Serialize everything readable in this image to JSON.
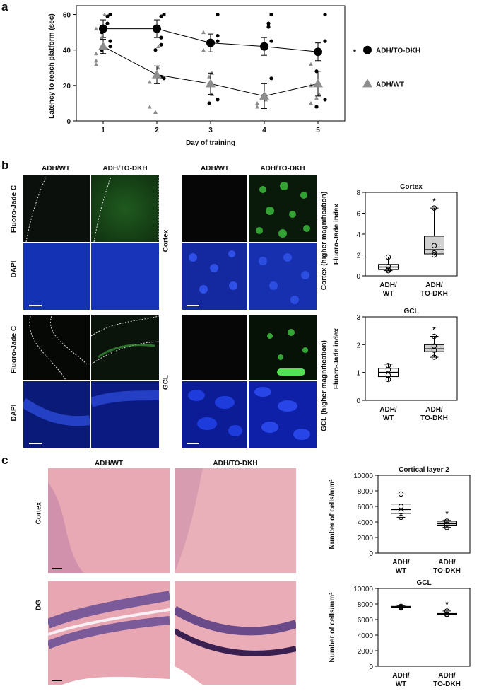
{
  "panels": {
    "a": "a",
    "b": "b",
    "c": "c"
  },
  "panel_a": {
    "chart_data": {
      "type": "scatter",
      "xlabel": "Day of training",
      "ylabel": "Latency to reach platform (sec)",
      "x": [
        1,
        2,
        3,
        4,
        5
      ],
      "xlim": [
        0.5,
        5.5
      ],
      "ylim": [
        0,
        65
      ],
      "yticks": [
        0,
        20,
        40,
        60
      ],
      "significance": "*",
      "series": [
        {
          "name": "ADH/TO-DKH",
          "mean": [
            52,
            52,
            44,
            42,
            39
          ],
          "error": [
            5,
            5,
            5,
            5,
            5
          ],
          "color": "#000000",
          "marker": "circle",
          "points": [
            [
              1,
              60
            ],
            [
              1,
              59
            ],
            [
              1,
              55
            ],
            [
              1,
              52
            ],
            [
              1,
              50
            ],
            [
              1,
              45
            ],
            [
              1,
              42
            ],
            [
              1,
              40
            ],
            [
              2,
              60
            ],
            [
              2,
              59
            ],
            [
              2,
              52
            ],
            [
              2,
              47
            ],
            [
              2,
              43
            ],
            [
              2,
              40
            ],
            [
              2,
              25
            ],
            [
              2,
              24
            ],
            [
              3,
              60
            ],
            [
              3,
              48
            ],
            [
              3,
              45
            ],
            [
              3,
              20
            ],
            [
              3,
              12
            ],
            [
              3,
              10
            ],
            [
              4,
              60
            ],
            [
              4,
              55
            ],
            [
              4,
              53
            ],
            [
              4,
              45
            ],
            [
              4,
              24
            ],
            [
              4,
              14
            ],
            [
              5,
              60
            ],
            [
              5,
              45
            ],
            [
              5,
              40
            ],
            [
              5,
              28
            ],
            [
              5,
              12
            ],
            [
              5,
              8
            ]
          ]
        },
        {
          "name": "ADH/WT",
          "mean": [
            42,
            26,
            21,
            14,
            21
          ],
          "error": [
            4,
            5,
            6,
            7,
            7
          ],
          "color": "#8c8c8c",
          "marker": "triangle",
          "points": [
            [
              1,
              60
            ],
            [
              1,
              52
            ],
            [
              1,
              47
            ],
            [
              1,
              42
            ],
            [
              1,
              38
            ],
            [
              1,
              34
            ],
            [
              1,
              32
            ],
            [
              2,
              42
            ],
            [
              2,
              30
            ],
            [
              2,
              22
            ],
            [
              2,
              8
            ],
            [
              2,
              5
            ],
            [
              3,
              50
            ],
            [
              3,
              40
            ],
            [
              3,
              27
            ],
            [
              3,
              25
            ],
            [
              3,
              15
            ],
            [
              4,
              15
            ],
            [
              4,
              12
            ],
            [
              4,
              10
            ],
            [
              4,
              8
            ],
            [
              5,
              32
            ],
            [
              5,
              20
            ],
            [
              5,
              15
            ],
            [
              5,
              13
            ],
            [
              5,
              10
            ]
          ]
        }
      ]
    }
  },
  "panel_b": {
    "col_left_wt": "ADH/WT",
    "col_left_dkh": "ADH/TO-DKH",
    "col_right_wt": "ADH/WT",
    "col_right_dkh": "ADH/TO-DKH",
    "row_fj1": "Fluoro-Jade C",
    "row_dapi1": "DAPI",
    "row_fj2": "Fluoro-Jade C",
    "row_dapi2": "DAPI",
    "cortex": "Cortex",
    "gcl": "GCL",
    "cortex_hm": "Cortex (higher magnification)",
    "gcl_hm": "GCL  (higher magnification)",
    "charts": [
      {
        "type": "box",
        "title": "Cortex",
        "ylabel": "Fluoro-Jade index",
        "categories": [
          "ADH/\nWT",
          "ADH/\nTO-DKH"
        ],
        "ylim": [
          0,
          8
        ],
        "yticks": [
          0,
          2,
          4,
          6,
          8
        ],
        "boxes": [
          {
            "min": 0.5,
            "q1": 0.6,
            "median": 0.85,
            "q3": 1.1,
            "max": 1.8,
            "points": [
              0.5,
              0.6,
              0.9,
              1.8
            ],
            "fill": "#ffffff"
          },
          {
            "min": 2.0,
            "q1": 2.1,
            "median": 2.5,
            "q3": 3.8,
            "max": 6.5,
            "points": [
              2.0,
              2.2,
              2.9,
              6.5
            ],
            "fill": "#d0d0d0",
            "significance": "*"
          }
        ]
      },
      {
        "type": "box",
        "title": "GCL",
        "ylabel": "Fluoro-Jade index",
        "categories": [
          "ADH/\nWT",
          "ADH/\nTO-DKH"
        ],
        "ylim": [
          0,
          3
        ],
        "yticks": [
          0,
          1,
          2,
          3
        ],
        "boxes": [
          {
            "min": 0.7,
            "q1": 0.85,
            "median": 1.0,
            "q3": 1.15,
            "max": 1.3,
            "points": [
              0.75,
              0.9,
              1.1,
              1.25
            ],
            "fill": "#ffffff"
          },
          {
            "min": 1.55,
            "q1": 1.75,
            "median": 1.85,
            "q3": 2.0,
            "max": 2.3,
            "points": [
              1.55,
              1.8,
              1.95,
              2.3
            ],
            "fill": "#d0d0d0",
            "significance": "*"
          }
        ]
      }
    ]
  },
  "panel_c": {
    "col_wt": "ADH/WT",
    "col_dkh": "ADH/TO-DKH",
    "row_cortex": "Cortex",
    "row_dg": "DG",
    "charts": [
      {
        "type": "box",
        "title": "Cortical layer 2",
        "ylabel": "Number of cells/mm²",
        "categories": [
          "ADH/\nWT",
          "ADH/\nTO-DKH"
        ],
        "ylim": [
          0,
          10000
        ],
        "yticks": [
          0,
          2000,
          4000,
          6000,
          8000,
          10000
        ],
        "boxes": [
          {
            "min": 4600,
            "q1": 5100,
            "median": 5600,
            "q3": 6300,
            "max": 7600,
            "points": [
              4600,
              5300,
              6000,
              7600
            ],
            "fill": "#ffffff"
          },
          {
            "min": 3300,
            "q1": 3500,
            "median": 3800,
            "q3": 4100,
            "max": 4200,
            "points": [
              3300,
              3700,
              4100
            ],
            "fill": "#d0d0d0",
            "significance": "*"
          }
        ]
      },
      {
        "type": "box",
        "title": "GCL",
        "ylabel": "Number of cells/mm²",
        "categories": [
          "ADH/\nWT",
          "ADH/\nTO-DKH"
        ],
        "ylim": [
          0,
          10000
        ],
        "yticks": [
          0,
          2000,
          4000,
          6000,
          8000,
          10000
        ],
        "boxes": [
          {
            "min": 7500,
            "q1": 7550,
            "median": 7600,
            "q3": 7700,
            "max": 7800,
            "points": [
              7500,
              7600,
              7700
            ],
            "fill": "#ffffff"
          },
          {
            "min": 6600,
            "q1": 6650,
            "median": 6700,
            "q3": 6780,
            "max": 7100,
            "points": [
              6650,
              6700,
              7100
            ],
            "fill": "#d0d0d0",
            "significance": "*"
          }
        ]
      }
    ]
  }
}
